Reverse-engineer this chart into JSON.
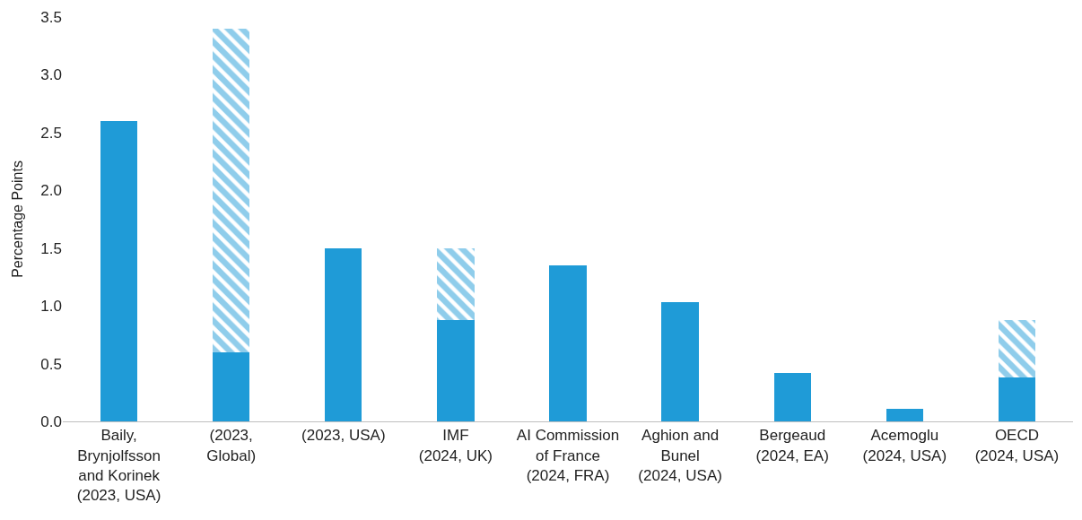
{
  "chart_data": {
    "type": "bar",
    "stacked": true,
    "ylabel": "Percentage Points",
    "categories": [
      "Baily, Brynjolfsson and Korinek (2023, USA)",
      "(2023, Global)",
      "(2023, USA)",
      "IMF (2024, UK)",
      "AI Commission of France (2024, FRA)",
      "Aghion and Bunel (2024, USA)",
      "Bergeaud (2024, EA)",
      "Acemoglu (2024, USA)",
      "OECD (2024, USA)"
    ],
    "series": [
      {
        "color": "#1f9bd7",
        "values": [
          2.6,
          0.6,
          1.5,
          0.88,
          1.35,
          1.03,
          0.42,
          0.11,
          0.38
        ]
      },
      {
        "color": "#1f9bd7",
        "values": [
          null,
          2.8,
          null,
          0.62,
          null,
          null,
          null,
          null,
          0.5
        ]
      }
    ],
    "ylim": [
      0,
      3.5
    ],
    "yticks": [
      {
        "value": 0,
        "label": "0.0"
      },
      {
        "value": 0.5,
        "label": "0.5"
      },
      {
        "value": 1,
        "label": "1.0"
      },
      {
        "value": 1.5,
        "label": "1.5"
      },
      {
        "value": 2,
        "label": "2.0"
      },
      {
        "value": 2.5,
        "label": "2.5"
      },
      {
        "value": 3,
        "label": "3.0"
      },
      {
        "value": 3.5,
        "label": "3.5"
      }
    ]
  }
}
